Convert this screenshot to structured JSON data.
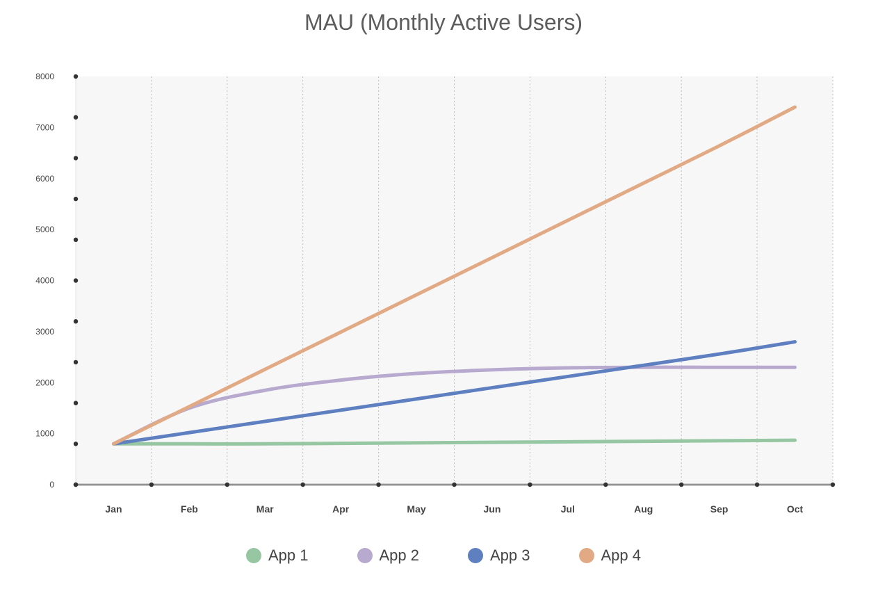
{
  "chart_data": {
    "type": "line",
    "title": "MAU (Monthly Active Users)",
    "xlabel": "",
    "ylabel": "",
    "categories": [
      "Jan",
      "Feb",
      "Mar",
      "Apr",
      "May",
      "Jun",
      "Jul",
      "Aug",
      "Sep",
      "Oct"
    ],
    "yticks": [
      0,
      1000,
      2000,
      3000,
      4000,
      5000,
      6000,
      7000,
      8000
    ],
    "ylim": [
      0,
      8000
    ],
    "grid": "vertical dotted",
    "legend_position": "bottom",
    "series": [
      {
        "name": "App 1",
        "color": "#96c7a2",
        "values": [
          800,
          800,
          800,
          810,
          820,
          830,
          840,
          850,
          860,
          870
        ]
      },
      {
        "name": "App 2",
        "color": "#b8a9cf",
        "values": [
          800,
          1500,
          1850,
          2050,
          2180,
          2250,
          2290,
          2300,
          2300,
          2300
        ]
      },
      {
        "name": "App 3",
        "color": "#5f80c0",
        "values": [
          800,
          1020,
          1240,
          1460,
          1680,
          1900,
          2120,
          2340,
          2560,
          2800
        ]
      },
      {
        "name": "App 4",
        "color": "#e1a984",
        "values": [
          800,
          1530,
          2260,
          2990,
          3720,
          4450,
          5180,
          5910,
          6640,
          7400
        ]
      }
    ]
  }
}
